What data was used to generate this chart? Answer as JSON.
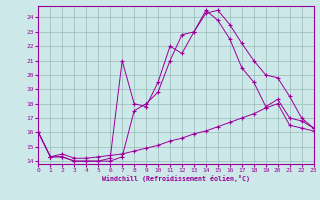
{
  "xlabel": "Windchill (Refroidissement éolien,°C)",
  "bg_color": "#cce8e8",
  "grid_color": "#99bbbb",
  "line_color": "#990099",
  "xlim": [
    0,
    23
  ],
  "ylim": [
    13.8,
    24.8
  ],
  "yticks": [
    14,
    15,
    16,
    17,
    18,
    19,
    20,
    21,
    22,
    23,
    24
  ],
  "xticks": [
    0,
    1,
    2,
    3,
    4,
    5,
    6,
    7,
    8,
    9,
    10,
    11,
    12,
    13,
    14,
    15,
    16,
    17,
    18,
    19,
    20,
    21,
    22,
    23
  ],
  "line1_x": [
    0,
    1,
    2,
    3,
    4,
    5,
    6,
    7,
    8,
    9,
    10,
    11,
    12,
    13,
    14,
    15,
    16,
    17,
    18,
    19,
    20,
    21,
    22,
    23
  ],
  "line1_y": [
    16.0,
    14.3,
    14.3,
    14.0,
    14.0,
    14.0,
    14.0,
    14.3,
    17.5,
    18.0,
    18.8,
    21.0,
    22.8,
    23.0,
    24.3,
    24.5,
    23.5,
    22.2,
    21.0,
    20.0,
    19.8,
    18.5,
    17.0,
    16.3
  ],
  "line2_x": [
    0,
    1,
    2,
    3,
    4,
    5,
    6,
    7,
    8,
    9,
    10,
    11,
    12,
    13,
    14,
    15,
    16,
    17,
    18,
    19,
    20,
    21,
    22,
    23
  ],
  "line2_y": [
    16.0,
    14.3,
    14.3,
    14.0,
    14.0,
    14.0,
    14.2,
    21.0,
    18.0,
    17.8,
    19.5,
    22.0,
    21.5,
    23.0,
    24.5,
    23.8,
    22.5,
    20.5,
    19.5,
    17.8,
    18.3,
    17.0,
    16.8,
    16.3
  ],
  "line3_x": [
    0,
    1,
    2,
    3,
    4,
    5,
    6,
    7,
    8,
    9,
    10,
    11,
    12,
    13,
    14,
    15,
    16,
    17,
    18,
    19,
    20,
    21,
    22,
    23
  ],
  "line3_y": [
    16.0,
    14.3,
    14.5,
    14.2,
    14.2,
    14.3,
    14.4,
    14.5,
    14.7,
    14.9,
    15.1,
    15.4,
    15.6,
    15.9,
    16.1,
    16.4,
    16.7,
    17.0,
    17.3,
    17.7,
    18.0,
    16.5,
    16.3,
    16.1
  ]
}
